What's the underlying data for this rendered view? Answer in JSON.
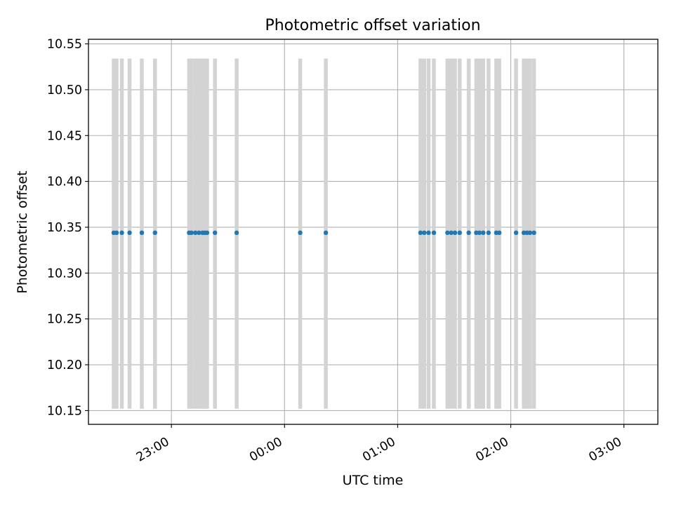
{
  "chart_data": {
    "type": "scatter",
    "title": "Photometric offset variation",
    "xlabel": "UTC time",
    "ylabel": "Photometric offset",
    "x_tick_labels": [
      "23:00",
      "00:00",
      "01:00",
      "02:00",
      "03:00"
    ],
    "x_tick_minutes": [
      0,
      60,
      120,
      180,
      240
    ],
    "x_range_minutes": [
      -44,
      258
    ],
    "ylim": [
      10.135,
      10.555
    ],
    "y_ticks": [
      10.15,
      10.2,
      10.25,
      10.3,
      10.35,
      10.4,
      10.45,
      10.5,
      10.55
    ],
    "y_tick_labels": [
      "10.15",
      "10.20",
      "10.25",
      "10.30",
      "10.35",
      "10.40",
      "10.45",
      "10.50",
      "10.55"
    ],
    "grid": true,
    "band_range": [
      10.152,
      10.534
    ],
    "series": [
      {
        "color": "#1f77b4",
        "x_minutes": [
          -30.6,
          -29.1,
          -26.3,
          -22.2,
          -15.7,
          -8.7,
          9.4,
          10.6,
          12.7,
          14.6,
          16.5,
          17.7,
          18.9,
          23.1,
          34.6,
          68.3,
          81.9,
          132.1,
          134.1,
          136.4,
          139.2,
          146.4,
          148.4,
          150.4,
          152.9,
          157.7,
          161.7,
          163.4,
          165.4,
          168.2,
          172.3,
          173.9,
          182.8,
          186.9,
          188.6,
          190.2,
          192.3
        ],
        "y": [
          10.344,
          10.344,
          10.344,
          10.344,
          10.344,
          10.344,
          10.344,
          10.344,
          10.344,
          10.344,
          10.344,
          10.344,
          10.344,
          10.344,
          10.344,
          10.344,
          10.344,
          10.344,
          10.344,
          10.344,
          10.344,
          10.344,
          10.344,
          10.344,
          10.344,
          10.344,
          10.344,
          10.344,
          10.344,
          10.344,
          10.344,
          10.344,
          10.344,
          10.344,
          10.344,
          10.344,
          10.344
        ]
      }
    ],
    "band_color": "#d3d3d3"
  }
}
